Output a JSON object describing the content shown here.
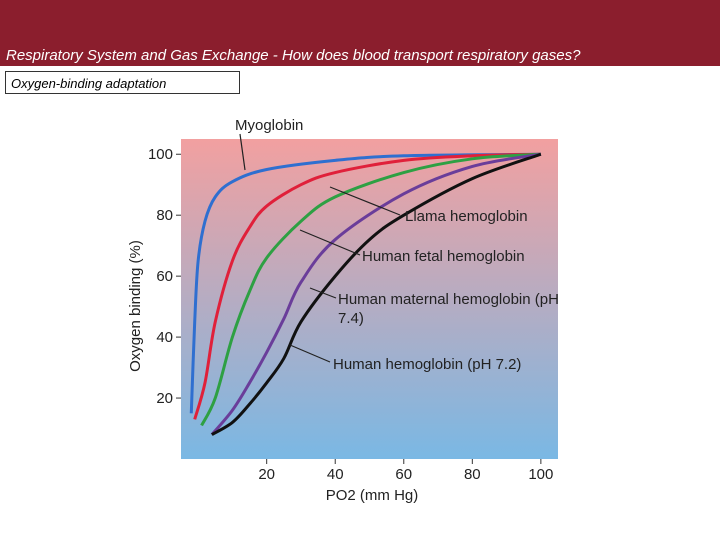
{
  "slide": {
    "title": "Respiratory System and Gas Exchange - How does blood transport respiratory gases?",
    "subtitle": "Oxygen-binding adaptation"
  },
  "chart_data": {
    "type": "line",
    "ylabel": "Oxygen binding (%)",
    "xlabel": "PO2 (mm Hg)",
    "xlim": [
      -5,
      105
    ],
    "ylim": [
      0,
      105
    ],
    "xticks": [
      20,
      40,
      60,
      80,
      100
    ],
    "yticks": [
      20,
      40,
      60,
      80,
      100
    ],
    "series": [
      {
        "name": "Myoglobin",
        "color": "#2f6fd0",
        "x": [
          -2,
          -1,
          0,
          2,
          5,
          10,
          20,
          40,
          60,
          100
        ],
        "values": [
          15,
          45,
          65,
          78,
          86,
          91,
          95,
          98,
          99.5,
          100
        ]
      },
      {
        "name": "Llama hemoglobin",
        "color": "#e0203a",
        "x": [
          -1,
          2,
          5,
          10,
          15,
          20,
          30,
          40,
          60,
          80,
          100
        ],
        "values": [
          13,
          25,
          45,
          65,
          76,
          83,
          90,
          94,
          98,
          99.5,
          100
        ]
      },
      {
        "name": "Human fetal hemoglobin",
        "color": "#2ea043",
        "x": [
          1,
          5,
          10,
          15,
          20,
          30,
          40,
          60,
          80,
          100
        ],
        "values": [
          11,
          20,
          40,
          55,
          66,
          78,
          86,
          94,
          98.5,
          100
        ]
      },
      {
        "name": "Human maternal hemoglobin (pH 7.4)",
        "color": "#6a3d9a",
        "x": [
          4,
          10,
          15,
          20,
          25,
          30,
          40,
          60,
          80,
          100
        ],
        "values": [
          8,
          16,
          25,
          35,
          46,
          58,
          72,
          87,
          96,
          100
        ]
      },
      {
        "name": "Human hemoglobin (pH 7.2)",
        "color": "#111111",
        "x": [
          4,
          10,
          15,
          20,
          25,
          30,
          40,
          50,
          60,
          80,
          100
        ],
        "values": [
          8,
          12,
          18,
          25,
          33,
          45,
          60,
          72,
          80,
          92,
          100
        ]
      }
    ]
  }
}
